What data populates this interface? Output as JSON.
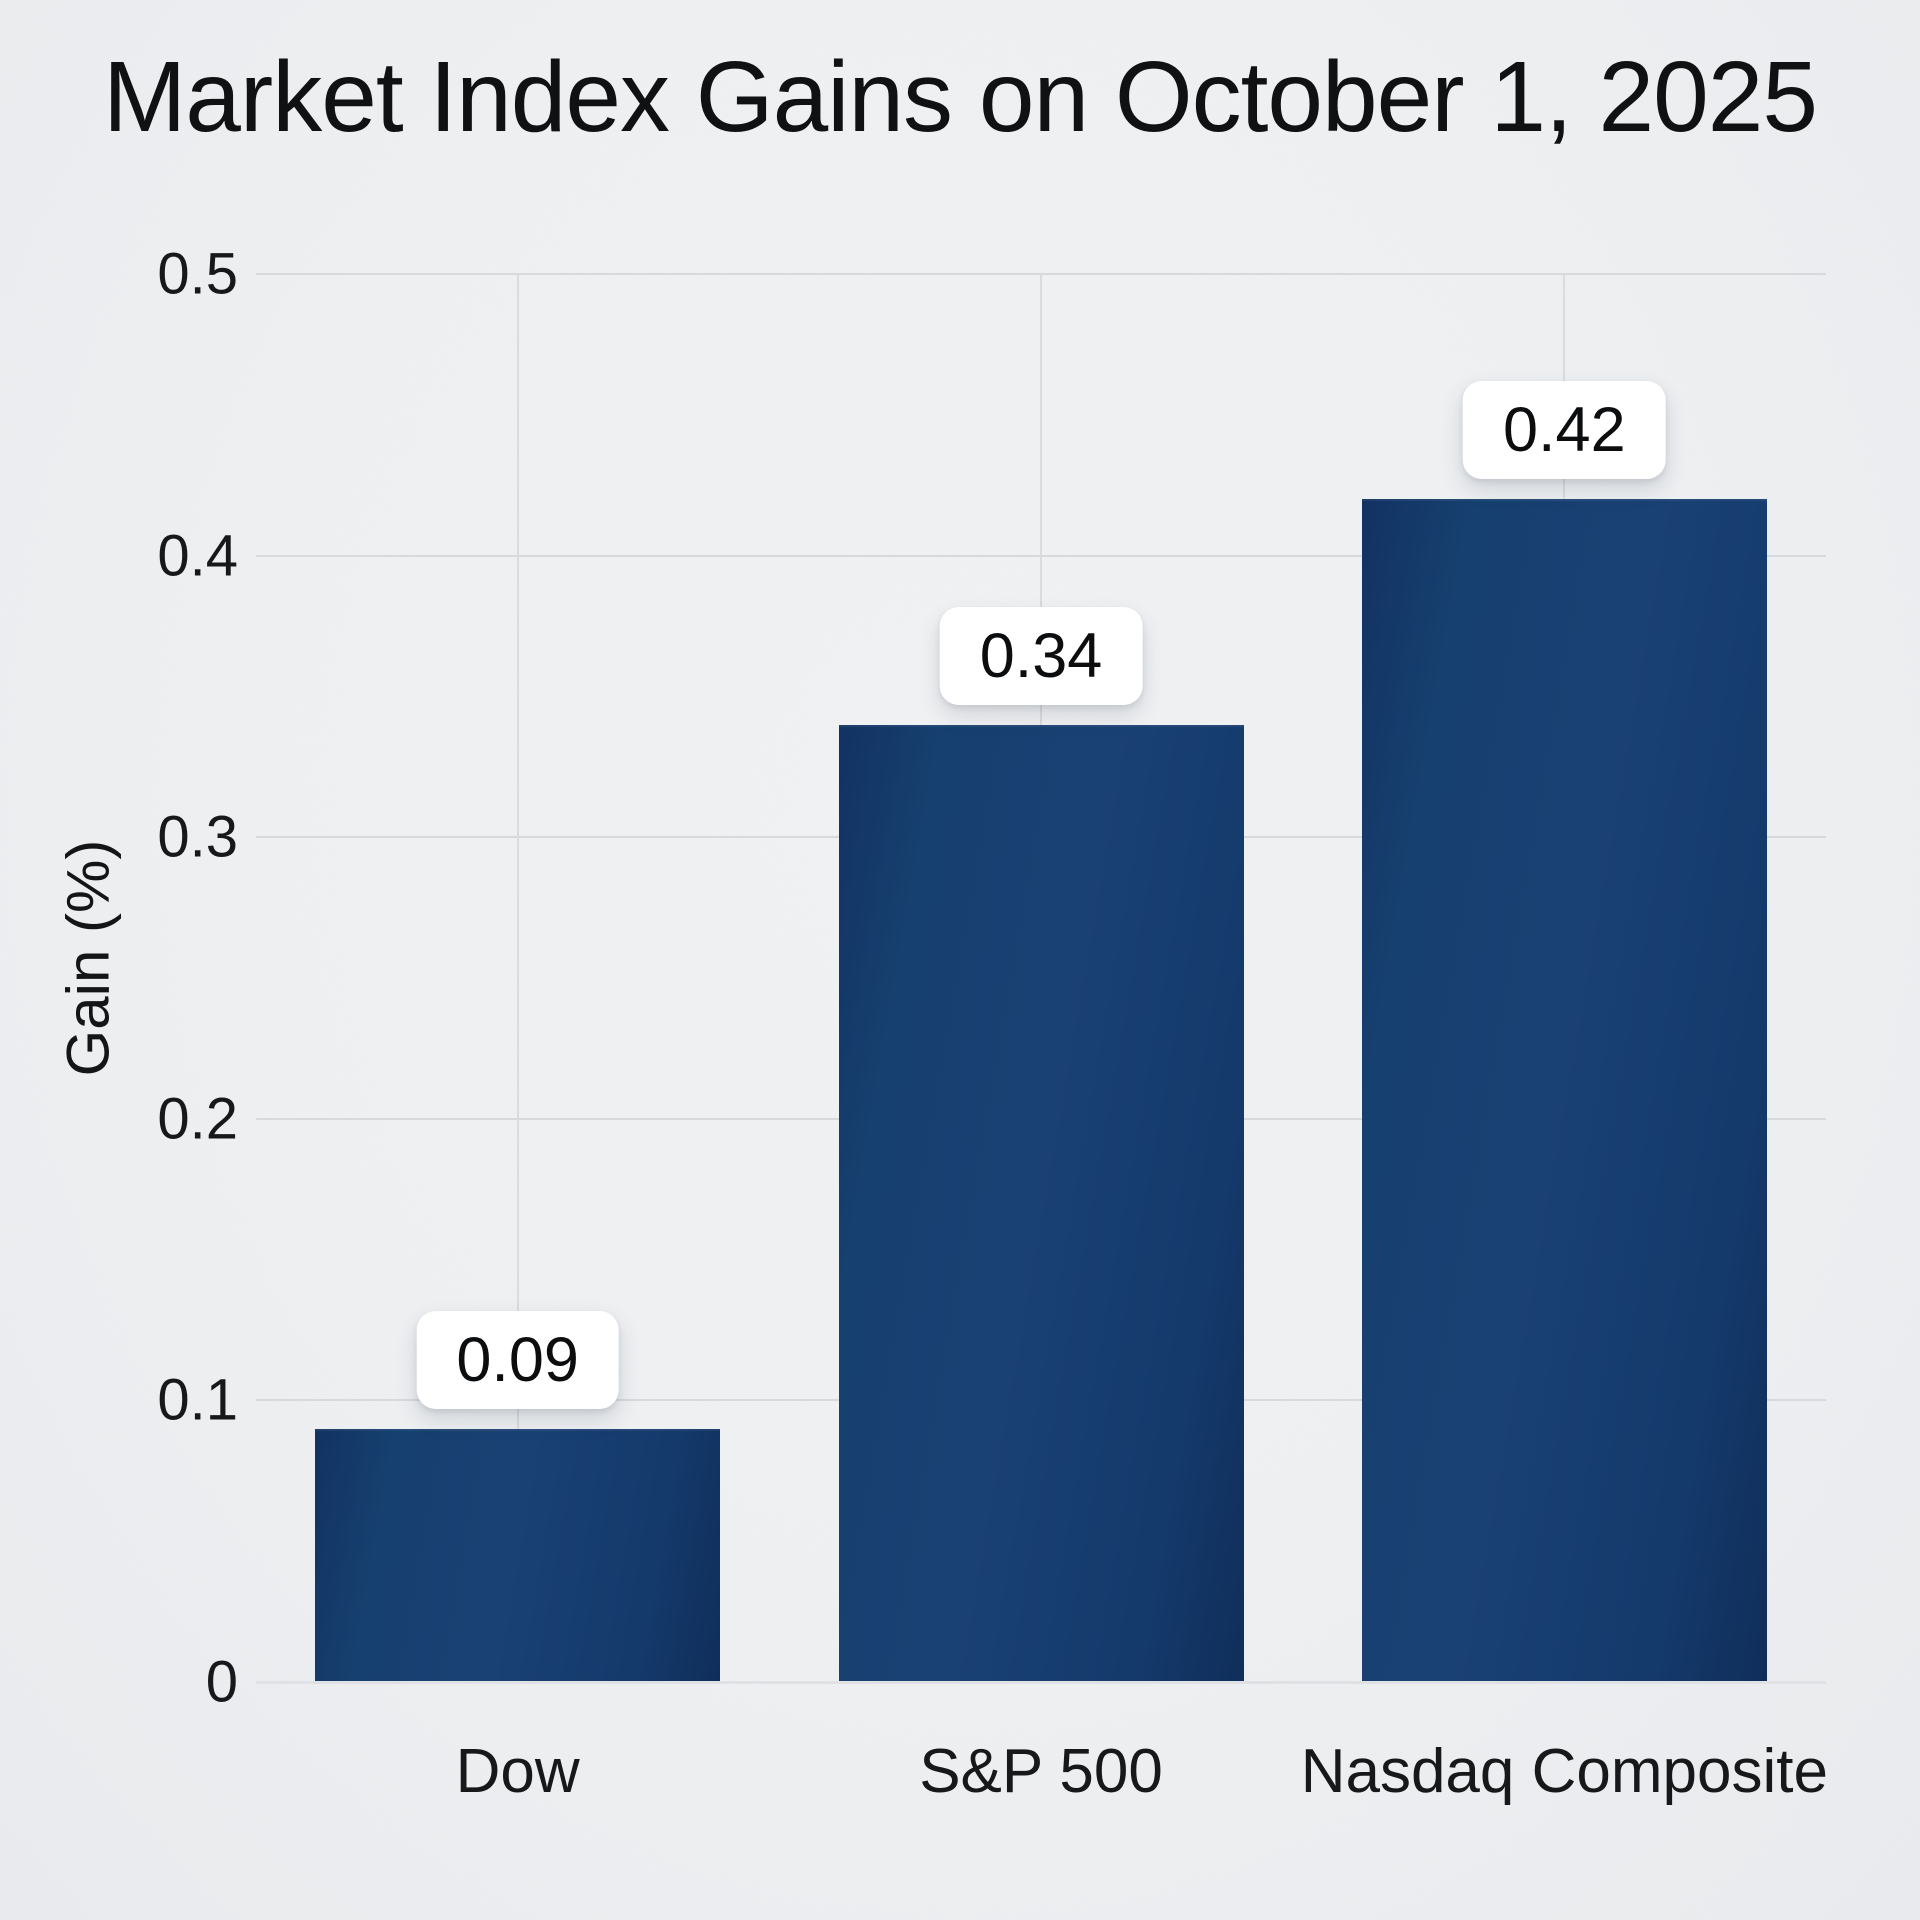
{
  "page": {
    "background_color": "#eef0f2",
    "text_color": "#141517"
  },
  "chart_data": {
    "type": "bar",
    "title": "Market Index Gains on October 1, 2025",
    "categories": [
      "Dow",
      "S&P 500",
      "Nasdaq Composite"
    ],
    "values": [
      0.09,
      0.34,
      0.42
    ],
    "value_labels": [
      "0.09",
      "0.34",
      "0.42"
    ],
    "xlabel": "",
    "ylabel": "Gain (%)",
    "ylim": [
      0,
      0.5
    ],
    "yticks": [
      0,
      0.1,
      0.2,
      0.3,
      0.4,
      0.5
    ],
    "ytick_labels": [
      "0",
      "0.1",
      "0.2",
      "0.3",
      "0.4",
      "0.5"
    ],
    "grid": "both",
    "legend_position": "none",
    "bar_color": "#153a6e",
    "grid_color": "#d7d9dc",
    "badge_background": "#ffffff",
    "axis_text_color": "#17181a"
  }
}
